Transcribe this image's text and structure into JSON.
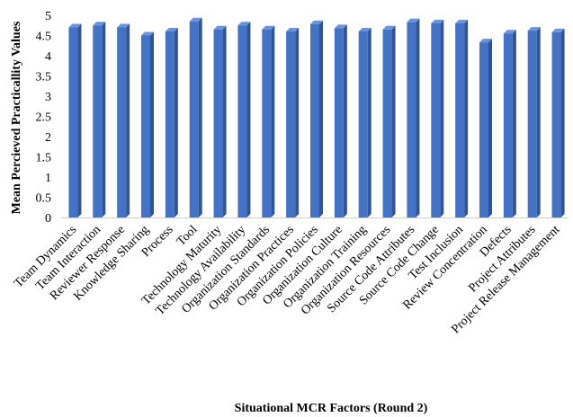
{
  "chart_data": {
    "type": "bar",
    "xlabel": "Situational MCR Factors (Round 2)",
    "ylabel": "Mean Percieved Practicallity Values",
    "ylim": [
      0,
      5
    ],
    "yticks": [
      "0",
      "0.5",
      "1",
      "1.5",
      "2",
      "2.5",
      "3",
      "3.5",
      "4",
      "4.5",
      "5"
    ],
    "grid": false,
    "legend": "none",
    "bar_color": "#4472C4",
    "categories": [
      "Team Dynamics",
      "Team Interaction",
      "Reviewer Response",
      "Knowledge Sharing",
      "Process",
      "Tool",
      "Technology Maturity",
      "Technology Availability",
      "Organization Standards",
      "Organization Practices",
      "Organization Policies",
      "Organization Culture",
      "Organization Training",
      "Organization Resources",
      "Source Code Attributes",
      "Source Code Change",
      "Test Inclusion",
      "Review Concentration",
      "Defects",
      "Project Attributes",
      "Project Release Management"
    ],
    "values": [
      4.7,
      4.75,
      4.7,
      4.5,
      4.6,
      4.85,
      4.65,
      4.75,
      4.65,
      4.6,
      4.78,
      4.68,
      4.6,
      4.65,
      4.83,
      4.8,
      4.8,
      4.33,
      4.55,
      4.62,
      4.58
    ]
  }
}
